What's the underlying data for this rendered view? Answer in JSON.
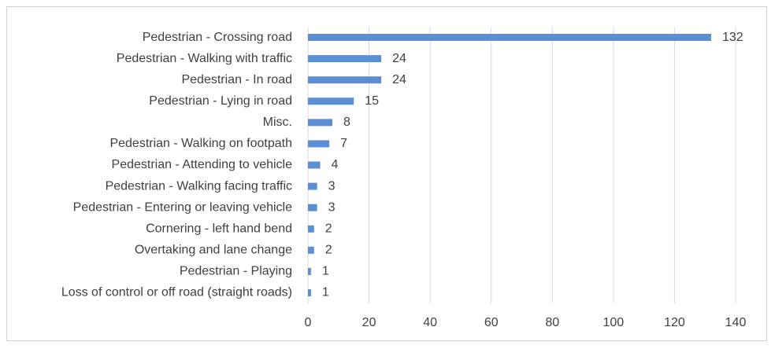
{
  "chart_data": {
    "type": "bar",
    "orientation": "horizontal",
    "title": "",
    "xlabel": "",
    "ylabel": "",
    "xlim": [
      0,
      140
    ],
    "x_ticks": [
      0,
      20,
      40,
      60,
      80,
      100,
      120,
      140
    ],
    "grid": true,
    "bar_color": "#5b8ed4",
    "categories": [
      "Pedestrian - Crossing road",
      "Pedestrian - Walking with traffic",
      "Pedestrian - In road",
      "Pedestrian - Lying in road",
      "Misc.",
      "Pedestrian - Walking on footpath",
      "Pedestrian - Attending to vehicle",
      "Pedestrian - Walking facing traffic",
      "Pedestrian - Entering or leaving vehicle",
      "Cornering - left hand bend",
      "Overtaking and lane change",
      "Pedestrian - Playing",
      "Loss of control or off road (straight roads)"
    ],
    "values": [
      132,
      24,
      24,
      15,
      8,
      7,
      4,
      3,
      3,
      2,
      2,
      1,
      1
    ]
  }
}
